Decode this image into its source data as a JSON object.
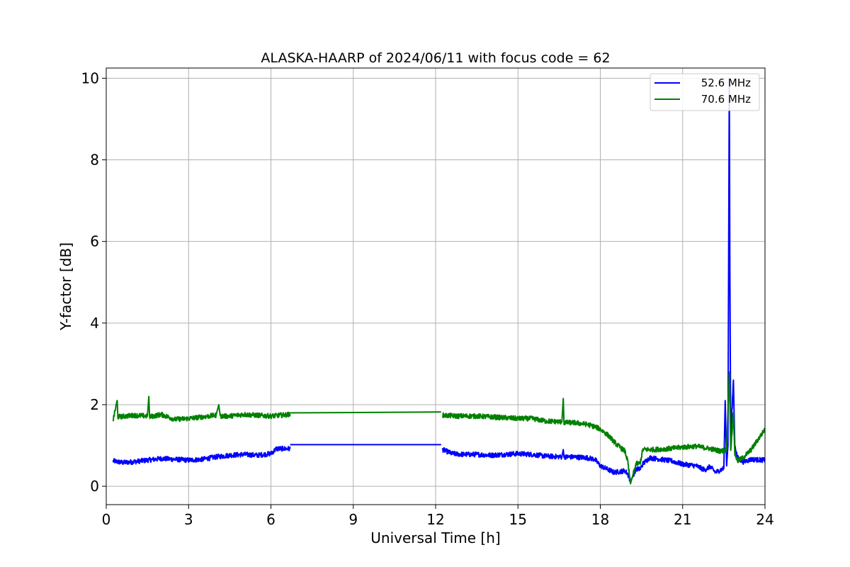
{
  "chart_data": {
    "type": "line",
    "title": "ALASKA-HAARP of 2024/06/11 with focus code = 62",
    "xlabel": "Universal Time [h]",
    "ylabel": "Y-factor [dB]",
    "xlim": [
      0,
      24
    ],
    "ylim": [
      -0.45,
      10.25
    ],
    "xticks": [
      0,
      3,
      6,
      9,
      12,
      15,
      18,
      21,
      24
    ],
    "yticks": [
      0,
      2,
      4,
      6,
      8,
      10
    ],
    "grid": true,
    "legend_position": "top-right",
    "series": [
      {
        "name": "52.6 MHz",
        "color": "#0000ff",
        "noise": 0.06,
        "segments": [
          [
            [
              0.25,
              0.62
            ],
            [
              0.6,
              0.58
            ],
            [
              1.0,
              0.6
            ],
            [
              1.5,
              0.64
            ],
            [
              2.0,
              0.68
            ],
            [
              2.5,
              0.66
            ],
            [
              3.0,
              0.64
            ],
            [
              3.5,
              0.66
            ],
            [
              4.0,
              0.72
            ],
            [
              4.5,
              0.76
            ],
            [
              5.0,
              0.78
            ],
            [
              5.5,
              0.76
            ],
            [
              6.0,
              0.8
            ],
            [
              6.2,
              0.92
            ],
            [
              6.7,
              0.92
            ]
          ],
          [
            [
              6.7,
              1.02
            ],
            [
              12.2,
              1.02
            ]
          ],
          [
            [
              12.25,
              0.9
            ],
            [
              12.6,
              0.8
            ],
            [
              13.0,
              0.78
            ],
            [
              13.5,
              0.78
            ],
            [
              14.0,
              0.76
            ],
            [
              14.5,
              0.78
            ],
            [
              15.0,
              0.8
            ],
            [
              15.5,
              0.78
            ],
            [
              16.0,
              0.74
            ],
            [
              16.6,
              0.72
            ],
            [
              16.65,
              0.9
            ],
            [
              16.68,
              0.72
            ],
            [
              17.0,
              0.72
            ],
            [
              17.5,
              0.7
            ],
            [
              17.8,
              0.66
            ],
            [
              18.0,
              0.5
            ],
            [
              18.5,
              0.34
            ],
            [
              18.9,
              0.38
            ],
            [
              19.0,
              0.3
            ],
            [
              19.1,
              0.12
            ],
            [
              19.2,
              0.28
            ],
            [
              19.3,
              0.42
            ],
            [
              19.45,
              0.42
            ],
            [
              19.55,
              0.55
            ],
            [
              19.8,
              0.7
            ],
            [
              20.2,
              0.66
            ],
            [
              20.6,
              0.62
            ],
            [
              21.0,
              0.54
            ],
            [
              21.5,
              0.5
            ],
            [
              21.8,
              0.4
            ],
            [
              22.0,
              0.48
            ],
            [
              22.2,
              0.34
            ],
            [
              22.5,
              0.44
            ],
            [
              22.55,
              2.1
            ],
            [
              22.6,
              0.5
            ],
            [
              22.65,
              1.0
            ],
            [
              22.7,
              10.0
            ],
            [
              22.72,
              5.3
            ],
            [
              22.75,
              1.2
            ],
            [
              22.85,
              2.6
            ],
            [
              22.9,
              1.0
            ],
            [
              23.0,
              0.7
            ],
            [
              23.2,
              0.6
            ],
            [
              23.5,
              0.66
            ],
            [
              24.0,
              0.64
            ]
          ]
        ]
      },
      {
        "name": "70.6 MHz",
        "color": "#008000",
        "noise": 0.06,
        "segments": [
          [
            [
              0.25,
              1.62
            ],
            [
              0.4,
              2.1
            ],
            [
              0.42,
              1.7
            ],
            [
              1.0,
              1.74
            ],
            [
              1.5,
              1.72
            ],
            [
              1.55,
              2.2
            ],
            [
              1.58,
              1.7
            ],
            [
              2.0,
              1.76
            ],
            [
              2.5,
              1.64
            ],
            [
              3.0,
              1.66
            ],
            [
              3.5,
              1.7
            ],
            [
              4.0,
              1.74
            ],
            [
              4.1,
              2.0
            ],
            [
              4.15,
              1.72
            ],
            [
              4.5,
              1.72
            ],
            [
              5.0,
              1.76
            ],
            [
              5.5,
              1.74
            ],
            [
              6.0,
              1.72
            ],
            [
              6.7,
              1.76
            ]
          ],
          [
            [
              6.7,
              1.8
            ],
            [
              12.2,
              1.82
            ]
          ],
          [
            [
              12.25,
              1.74
            ],
            [
              12.8,
              1.72
            ],
            [
              13.5,
              1.72
            ],
            [
              14.0,
              1.7
            ],
            [
              14.5,
              1.68
            ],
            [
              15.0,
              1.66
            ],
            [
              15.5,
              1.66
            ],
            [
              16.0,
              1.6
            ],
            [
              16.5,
              1.58
            ],
            [
              16.6,
              1.58
            ],
            [
              16.65,
              2.15
            ],
            [
              16.68,
              1.56
            ],
            [
              17.0,
              1.56
            ],
            [
              17.5,
              1.52
            ],
            [
              17.8,
              1.46
            ],
            [
              18.0,
              1.4
            ],
            [
              18.3,
              1.24
            ],
            [
              18.6,
              1.02
            ],
            [
              18.9,
              0.86
            ],
            [
              19.0,
              0.6
            ],
            [
              19.1,
              0.06
            ],
            [
              19.2,
              0.3
            ],
            [
              19.3,
              0.55
            ],
            [
              19.45,
              0.56
            ],
            [
              19.55,
              0.9
            ],
            [
              20.0,
              0.9
            ],
            [
              20.5,
              0.92
            ],
            [
              21.0,
              0.96
            ],
            [
              21.5,
              0.98
            ],
            [
              22.0,
              0.92
            ],
            [
              22.4,
              0.86
            ],
            [
              22.6,
              0.9
            ],
            [
              22.7,
              2.8
            ],
            [
              22.75,
              0.9
            ],
            [
              22.85,
              1.8
            ],
            [
              22.9,
              0.8
            ],
            [
              23.0,
              0.62
            ],
            [
              23.2,
              0.7
            ],
            [
              23.5,
              0.9
            ],
            [
              23.8,
              1.2
            ],
            [
              24.0,
              1.4
            ]
          ]
        ]
      }
    ]
  }
}
